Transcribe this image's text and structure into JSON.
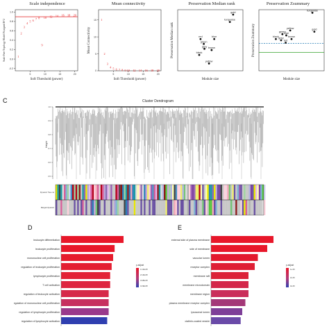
{
  "panels": {
    "a": {
      "title": "Scale independence",
      "xlabel": "Soft Threshold (power)",
      "ylabel": "Scale Free Topology Model Fit,signed R^2"
    },
    "b": {
      "title": "Mean connectivity",
      "xlabel": "Soft Threshold (power)",
      "ylabel": "Mean Connectivity"
    },
    "c1": {
      "title": "Preservation Median rank",
      "xlabel": "Module size",
      "ylabel": "Preservation Median rank"
    },
    "c2": {
      "title": "Preservation Zsummary",
      "xlabel": "Module size",
      "ylabel": "Preservation Zsummary"
    },
    "c": {
      "letter": "C",
      "title": "Cluster Dendrogram",
      "ylabel": "Height",
      "row1": "Dynamic Tree cut",
      "row2": "Merged dynamic"
    },
    "d": {
      "letter": "D",
      "legend_title": "p.adjust"
    },
    "e": {
      "letter": "E",
      "legend_title": "p.adjust"
    }
  },
  "chart_data": [
    {
      "type": "scatter",
      "id": "scale-independence",
      "title": "Scale independence",
      "xlabel": "Soft Threshold (power)",
      "ylabel": "Scale Free Topology Model Fit,signed R^2",
      "xticks": [
        5,
        10,
        15,
        20
      ],
      "yticks": [
        "-0.2",
        "0.0",
        "0.2",
        "0.4",
        "0.6",
        "0.8",
        "1.0"
      ],
      "xlim": [
        0,
        21
      ],
      "ylim": [
        -0.25,
        1.05
      ],
      "hline": 0.9,
      "points": [
        {
          "label": "1",
          "x": 1,
          "y": 0.05
        },
        {
          "label": "2",
          "x": 2,
          "y": 0.55
        },
        {
          "label": "3",
          "x": 3,
          "y": 0.68
        },
        {
          "label": "4",
          "x": 4,
          "y": 0.76
        },
        {
          "label": "5",
          "x": 5,
          "y": 0.8
        },
        {
          "label": "6",
          "x": 6,
          "y": 0.82
        },
        {
          "label": "7",
          "x": 7,
          "y": 0.85
        },
        {
          "label": "8",
          "x": 8,
          "y": 0.87
        },
        {
          "label": "9",
          "x": 9,
          "y": 0.3
        },
        {
          "label": "10",
          "x": 10,
          "y": 0.88
        },
        {
          "label": "12",
          "x": 12,
          "y": 0.9
        },
        {
          "label": "14",
          "x": 14,
          "y": 0.92
        },
        {
          "label": "16",
          "x": 16,
          "y": 0.93
        },
        {
          "label": "18",
          "x": 18,
          "y": 0.93
        },
        {
          "label": "20",
          "x": 20,
          "y": 0.93
        }
      ]
    },
    {
      "type": "scatter",
      "id": "mean-connectivity",
      "title": "Mean connectivity",
      "xlabel": "Soft Threshold (power)",
      "ylabel": "Mean Connectivity",
      "xticks": [
        5,
        10,
        15,
        20
      ],
      "yticks": [
        "0",
        "5",
        "10",
        "15"
      ],
      "xlim": [
        0,
        21
      ],
      "ylim": [
        0,
        18
      ],
      "points": [
        {
          "label": "1",
          "x": 1,
          "y": 15
        },
        {
          "label": "2",
          "x": 2,
          "y": 5
        },
        {
          "label": "3",
          "x": 3,
          "y": 2
        },
        {
          "label": "4",
          "x": 4,
          "y": 1
        },
        {
          "label": "5",
          "x": 5,
          "y": 0.6
        },
        {
          "label": "6",
          "x": 6,
          "y": 0.4
        },
        {
          "label": "7",
          "x": 7,
          "y": 0.3
        },
        {
          "label": "8",
          "x": 8,
          "y": 0.2
        },
        {
          "label": "9",
          "x": 9,
          "y": 0.15
        },
        {
          "label": "10",
          "x": 10,
          "y": 0.1
        },
        {
          "label": "12",
          "x": 12,
          "y": 0.1
        },
        {
          "label": "14",
          "x": 14,
          "y": 0.1
        },
        {
          "label": "16",
          "x": 16,
          "y": 0.1
        },
        {
          "label": "18",
          "x": 18,
          "y": 0.1
        },
        {
          "label": "20",
          "x": 20,
          "y": 0.1
        }
      ]
    },
    {
      "type": "scatter",
      "id": "preservation-median-rank",
      "title": "Preservation Median rank",
      "xlabel": "Module size",
      "ylabel": "Preservation Median rank",
      "xlim": [
        0,
        10
      ],
      "ylim": [
        0,
        10
      ],
      "points": [
        {
          "label": "gold",
          "x": 8.5,
          "y": 9.2
        },
        {
          "label": "turquoise",
          "x": 8.0,
          "y": 8.0
        },
        {
          "label": "red",
          "x": 3.5,
          "y": 5.2
        },
        {
          "label": "blue",
          "x": 5.6,
          "y": 5.2
        },
        {
          "label": "green",
          "x": 4.0,
          "y": 4.4
        },
        {
          "label": "grey",
          "x": 4.1,
          "y": 3.6
        },
        {
          "label": "brown",
          "x": 5.2,
          "y": 3.4
        },
        {
          "label": "black",
          "x": 3.3,
          "y": 2.6
        },
        {
          "label": "yellow",
          "x": 4.8,
          "y": 1.2
        }
      ]
    },
    {
      "type": "scatter",
      "id": "preservation-zsummary",
      "title": "Preservation Zsummary",
      "xlabel": "Module size",
      "ylabel": "Preservation Zsummary",
      "xlim": [
        0,
        10
      ],
      "ylim": [
        0,
        10
      ],
      "hlines": [
        {
          "y": 3.0,
          "color": "#33a02c"
        },
        {
          "y": 4.5,
          "color": "#1f78b4"
        }
      ],
      "points": [
        {
          "label": "turquoise",
          "x": 8.2,
          "y": 9.5
        },
        {
          "label": "gold",
          "x": 8.5,
          "y": 6.4
        },
        {
          "label": "yellow",
          "x": 4.8,
          "y": 6.6
        },
        {
          "label": "green",
          "x": 3.6,
          "y": 6.0
        },
        {
          "label": "blue",
          "x": 4.2,
          "y": 5.8
        },
        {
          "label": "black",
          "x": 2.6,
          "y": 5.2
        },
        {
          "label": "grey",
          "x": 3.4,
          "y": 5.0
        },
        {
          "label": "red",
          "x": 4.1,
          "y": 4.6
        },
        {
          "label": "brown",
          "x": 5.0,
          "y": 5.2
        }
      ]
    },
    {
      "type": "bar",
      "id": "go-bp",
      "orientation": "horizontal",
      "categories": [
        "leukocyte differentiation",
        "leukocyte proliferation",
        "mononuclear cell proliferation",
        "regulation of leukocyte proliferation",
        "lymphocyte proliferation",
        "T cell activation",
        "regulation of leukocyte activation",
        "regulation of mononuclear cell proliferation",
        "regulation of lymphocyte proliferation",
        "regulation of lymphocyte activation"
      ],
      "values": [
        42,
        36,
        35,
        34,
        33,
        33,
        32,
        32,
        32,
        31
      ],
      "colors": [
        "#e8172a",
        "#e8172a",
        "#e61c2d",
        "#e41f32",
        "#e32236",
        "#de2540",
        "#d62a4a",
        "#c73060",
        "#9a3a8c",
        "#2f3fb0"
      ],
      "legend_ticks": [
        "1.12E-08",
        "2.14E-08",
        "3.18E-08",
        "4.19E-08"
      ]
    },
    {
      "type": "bar",
      "id": "go-cc",
      "orientation": "horizontal",
      "categories": [
        "external side of plasma membrane",
        "side of membrane",
        "vacuolar lumen",
        "receptor complex",
        "membrane raft",
        "membrane microdomain",
        "membrane region",
        "plasma membrane receptor complex",
        "lysosomal lumen",
        "clathrin-coated vesicle"
      ],
      "values": [
        40,
        36,
        30,
        28,
        24,
        24,
        24,
        22,
        20,
        19
      ],
      "colors": [
        "#e8172a",
        "#e8172a",
        "#e31a2e",
        "#df1f35",
        "#dc2238",
        "#d4274a",
        "#ca2d5a",
        "#a43878",
        "#7e3f98",
        "#6a4aa8"
      ],
      "legend_ticks": [
        "1e-06",
        "2e-06",
        "3e-06"
      ]
    }
  ]
}
